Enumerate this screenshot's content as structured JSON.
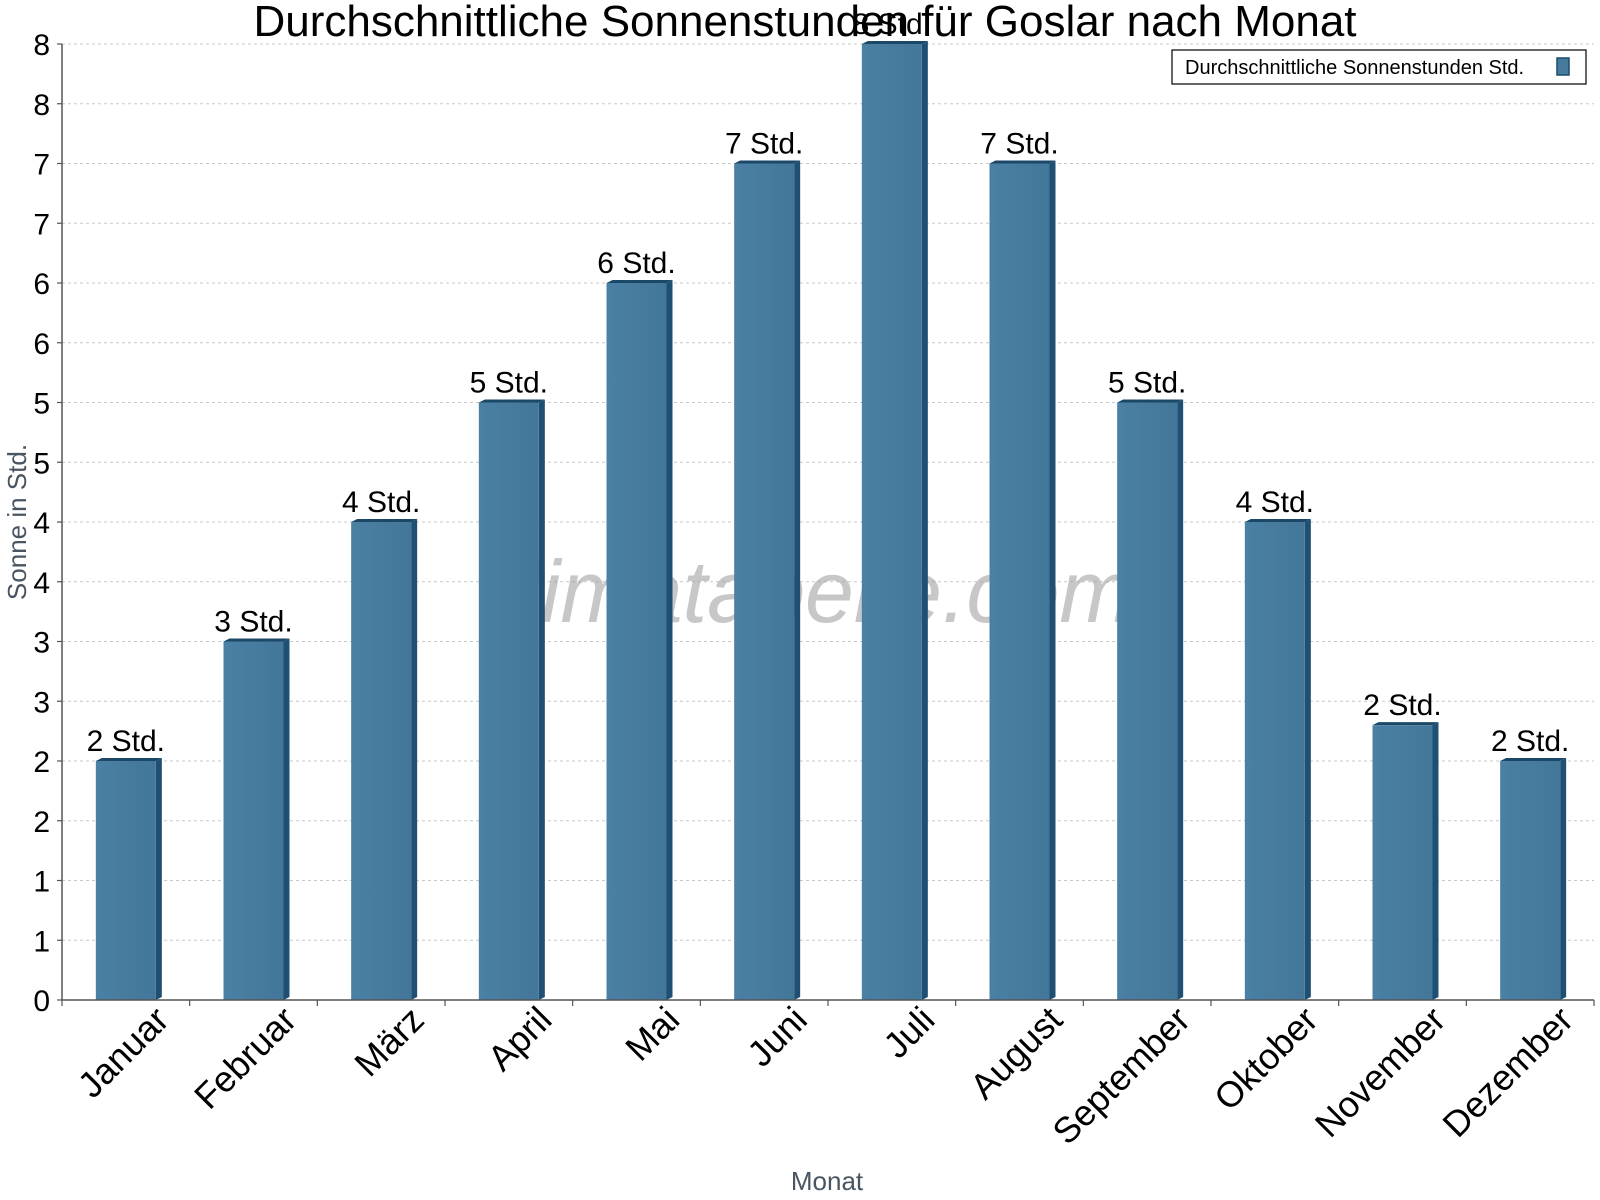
{
  "chart_data": {
    "type": "bar",
    "title": "Durchschnittliche Sonnenstunden für Goslar nach Monat",
    "xlabel": "Monat",
    "ylabel": "Sonne in Std.",
    "ylim": [
      0,
      8
    ],
    "y_tick_labels": [
      "0",
      "1",
      "1",
      "2",
      "2",
      "3",
      "3",
      "4",
      "4",
      "5",
      "5",
      "6",
      "6",
      "7",
      "7",
      "8",
      "8"
    ],
    "categories": [
      "Januar",
      "Februar",
      "März",
      "April",
      "Mai",
      "Juni",
      "Juli",
      "August",
      "September",
      "Oktober",
      "November",
      "Dezember"
    ],
    "series": [
      {
        "name": "Durchschnittliche Sonnenstunden Std.",
        "values": [
          2.0,
          3.0,
          4.0,
          5.0,
          6.0,
          7.0,
          8.0,
          7.0,
          5.0,
          4.0,
          2.3,
          2.0
        ],
        "labels": [
          "2 Std.",
          "3 Std.",
          "4 Std.",
          "5 Std.",
          "6 Std.",
          "7 Std.",
          "8 Std.",
          "7 Std.",
          "5 Std.",
          "4 Std.",
          "2 Std.",
          "2 Std."
        ],
        "color": "#467b9e"
      }
    ],
    "grid": true,
    "legend_position": "top-right",
    "watermark": "klimatabelle.com"
  }
}
